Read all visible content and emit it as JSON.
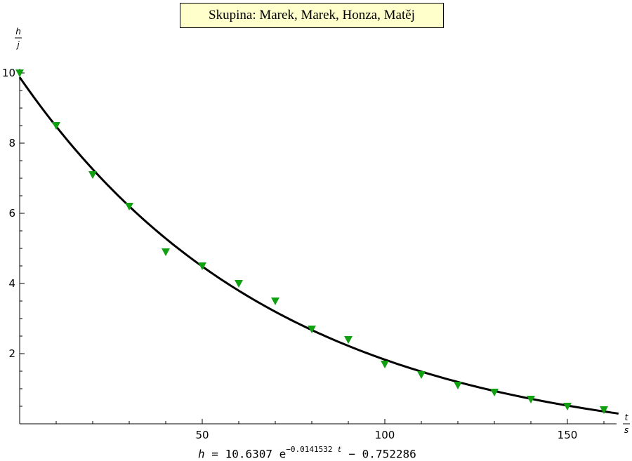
{
  "title": "Skupina: Marek, Marek, Honza, Matěj",
  "y_unit_num": "h",
  "y_unit_den": "j",
  "x_unit_num": "t",
  "x_unit_den": "s",
  "formula": {
    "lhs": "h",
    "eq": "=",
    "coef": "10.6307",
    "base": "e",
    "exponent": "−0.0141532",
    "exp_var": "t",
    "tail": "− 0.752286"
  },
  "colors": {
    "marker": "#11a012",
    "curve": "#000000",
    "title_bg": "#ffffcc"
  },
  "chart_data": {
    "type": "scatter",
    "title": "Skupina: Marek, Marek, Honza, Matěj",
    "xlabel": "t/s",
    "ylabel": "h/j",
    "xlim": [
      0,
      165
    ],
    "ylim": [
      0,
      10
    ],
    "x_ticks": [
      50,
      100,
      150
    ],
    "y_ticks": [
      2,
      4,
      6,
      8,
      10
    ],
    "grid": false,
    "series": [
      {
        "marker": "triangle-down",
        "x": [
          0,
          10,
          20,
          30,
          40,
          50,
          60,
          70,
          80,
          90,
          100,
          110,
          120,
          130,
          140,
          150,
          160
        ],
        "y": [
          10.0,
          8.5,
          7.1,
          6.2,
          4.9,
          4.5,
          4.0,
          3.5,
          2.7,
          2.4,
          1.7,
          1.4,
          1.1,
          0.9,
          0.7,
          0.5,
          0.4
        ]
      }
    ],
    "fit": {
      "a": 10.6307,
      "k": -0.0141532,
      "c": -0.752286,
      "x_range": [
        0,
        164
      ]
    }
  }
}
